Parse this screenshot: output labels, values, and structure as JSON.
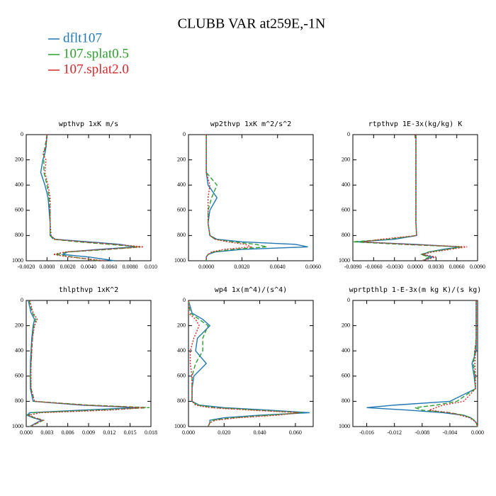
{
  "title": "CLUBB VAR at259E,-1N",
  "legend": [
    {
      "name": "dflt107",
      "color": "#1f77b4",
      "style": "solid"
    },
    {
      "name": "107.splat0.5",
      "color": "#2ca02c",
      "style": "dashed"
    },
    {
      "name": "107.splat2.0",
      "color": "#d62728",
      "style": "dotted"
    }
  ],
  "chart_data": [
    {
      "type": "line",
      "title": "wpthvp  1xK m/s",
      "y": [
        0,
        100,
        150,
        200,
        300,
        400,
        500,
        600,
        700,
        800,
        830,
        850,
        870,
        890,
        910,
        930,
        950,
        970,
        1000
      ],
      "ylim": [
        0,
        1000
      ],
      "y_inverted": true,
      "yticks": [
        0,
        200,
        400,
        600,
        800,
        1000
      ],
      "xlim": [
        -0.002,
        0.01
      ],
      "xticks": [
        {
          "value": -0.002,
          "label": "-0.0020"
        },
        {
          "value": 0,
          "label": "0.0000"
        },
        {
          "value": 0.002,
          "label": "0.0020"
        },
        {
          "value": 0.004,
          "label": "0.0040"
        },
        {
          "value": 0.006,
          "label": "0.0060"
        },
        {
          "value": 0.008,
          "label": "0.0080"
        },
        {
          "value": 0.01,
          "label": "0.010"
        }
      ],
      "series": [
        {
          "values": [
            0,
            -0.0001,
            -0.0002,
            -0.0004,
            -0.0006,
            -0.0002,
            0.0001,
            0.0002,
            0.0003,
            0.0003,
            0.0008,
            0.004,
            0.007,
            0.0085,
            0.005,
            0.002,
            0.0015,
            0.004,
            0.0065
          ]
        },
        {
          "values": [
            0,
            -0.0002,
            -0.0003,
            -0.0003,
            -0.0003,
            0,
            0.0002,
            0.0003,
            0.0003,
            0.0003,
            0.0006,
            0.003,
            0.006,
            0.009,
            0.006,
            0.002,
            0.0008,
            0.0025,
            0.005
          ]
        },
        {
          "values": [
            0,
            -0.0001,
            -0.0004,
            -0.0001,
            -0.0002,
            0.0001,
            0.0003,
            0.0003,
            0.0003,
            0.0004,
            0.0007,
            0.0035,
            0.0065,
            0.0093,
            0.0055,
            0.0018,
            0.0006,
            0.0022,
            0.0055
          ]
        }
      ]
    },
    {
      "type": "line",
      "title": "wp2thvp  1xK m^2/s^2",
      "y": [
        0,
        100,
        150,
        200,
        300,
        400,
        500,
        600,
        700,
        800,
        830,
        850,
        870,
        890,
        910,
        930,
        950,
        970,
        1000
      ],
      "ylim": [
        0,
        1000
      ],
      "y_inverted": true,
      "yticks": [
        0,
        200,
        400,
        600,
        800,
        1000
      ],
      "xlim": [
        -0.001,
        0.006
      ],
      "xticks": [
        {
          "value": 0,
          "label": "0.0000"
        },
        {
          "value": 0.002,
          "label": "0.0020"
        },
        {
          "value": 0.004,
          "label": "0.0040"
        },
        {
          "value": 0.006,
          "label": "0.0060"
        }
      ],
      "series": [
        {
          "values": [
            0,
            0,
            0,
            0,
            0,
            0.0001,
            0.0006,
            0.0002,
            0.0001,
            0.0002,
            0.0006,
            0.002,
            0.005,
            0.0057,
            0.002,
            0.0005,
            0.0001,
            0,
            0
          ]
        },
        {
          "values": [
            0,
            0,
            0,
            0,
            0,
            0.0006,
            0.0003,
            0.0001,
            0.0001,
            0.0002,
            0.0005,
            0.0015,
            0.0028,
            0.0034,
            0.0015,
            0.0004,
            0.0001,
            0,
            0
          ]
        },
        {
          "values": [
            0,
            0,
            0,
            0,
            0,
            0.0002,
            0.0001,
            0.0001,
            0.0001,
            0.0002,
            0.0005,
            0.0012,
            0.0022,
            0.0025,
            0.001,
            0.0003,
            0.0001,
            0,
            0
          ]
        }
      ]
    },
    {
      "type": "line",
      "title": "rtpthvp  1E-3x(kg/kg) K",
      "y": [
        0,
        100,
        150,
        200,
        300,
        400,
        500,
        600,
        700,
        800,
        830,
        850,
        870,
        890,
        910,
        930,
        950,
        970,
        1000
      ],
      "ylim": [
        0,
        1000
      ],
      "y_inverted": true,
      "yticks": [
        0,
        200,
        400,
        600,
        800,
        1000
      ],
      "xlim": [
        -0.009,
        0.009
      ],
      "xticks": [
        {
          "value": -0.009,
          "label": "-0.0090"
        },
        {
          "value": -0.006,
          "label": "-0.0060"
        },
        {
          "value": -0.003,
          "label": "-0.0030"
        },
        {
          "value": 0,
          "label": "0.0000"
        },
        {
          "value": 0.003,
          "label": "0.0030"
        },
        {
          "value": 0.006,
          "label": "0.0060"
        },
        {
          "value": 0.009,
          "label": "0.0090"
        }
      ],
      "series": [
        {
          "values": [
            0.0001,
            0.0001,
            0.0001,
            0.0001,
            0.0001,
            0.0001,
            0.0001,
            0.0001,
            0.0001,
            0.0002,
            -0.003,
            -0.0085,
            0,
            0.0065,
            0.004,
            0.002,
            0.001,
            0.0025,
            0.001
          ]
        },
        {
          "values": [
            0.0001,
            0.0001,
            0.0001,
            0.0001,
            0.0001,
            0.0001,
            0.0001,
            0.0001,
            0.0001,
            0.0002,
            -0.004,
            -0.009,
            -0.002,
            0.0068,
            0.0045,
            0.002,
            0.0008,
            0.002,
            0.001
          ]
        },
        {
          "values": [
            0.0001,
            0.0001,
            0.0001,
            0.0001,
            0.0001,
            0.0001,
            0.0001,
            0.0001,
            0.0001,
            0.0002,
            -0.005,
            -0.0075,
            -0.001,
            0.0075,
            0.005,
            0.0025,
            0.001,
            0.003,
            0.001
          ]
        }
      ]
    },
    {
      "type": "line",
      "title": "thlpthvp  1xK^2",
      "y": [
        0,
        100,
        150,
        200,
        300,
        400,
        500,
        600,
        700,
        800,
        830,
        850,
        870,
        890,
        910,
        930,
        950,
        970,
        1000
      ],
      "ylim": [
        0,
        1000
      ],
      "y_inverted": true,
      "yticks": [
        0,
        200,
        400,
        600,
        800,
        1000
      ],
      "xlim": [
        0,
        0.018
      ],
      "xticks": [
        {
          "value": 0,
          "label": "0.000"
        },
        {
          "value": 0.003,
          "label": "0.003"
        },
        {
          "value": 0.006,
          "label": "0.006"
        },
        {
          "value": 0.009,
          "label": "0.009"
        },
        {
          "value": 0.012,
          "label": "0.012"
        },
        {
          "value": 0.015,
          "label": "0.015"
        },
        {
          "value": 0.018,
          "label": "0.018"
        }
      ],
      "series": [
        {
          "values": [
            0.0003,
            0.0007,
            0.0012,
            0.001,
            0.0008,
            0.0007,
            0.0006,
            0.0006,
            0.0006,
            0.001,
            0.008,
            0.016,
            0.008,
            0.0005,
            0.0001,
            0.001,
            0.0022,
            0.0015,
            0.0005
          ]
        },
        {
          "values": [
            0.0004,
            0.0009,
            0.0014,
            0.0011,
            0.0009,
            0.0008,
            0.0007,
            0.0006,
            0.0007,
            0.0012,
            0.009,
            0.0178,
            0.01,
            0.001,
            0.0002,
            0.0012,
            0.0025,
            0.0017,
            0.0006
          ]
        },
        {
          "values": [
            0.0005,
            0.001,
            0.0016,
            0.0012,
            0.0009,
            0.0008,
            0.0007,
            0.0007,
            0.0007,
            0.0012,
            0.0085,
            0.017,
            0.012,
            0.002,
            0.0004,
            0.0013,
            0.0024,
            0.0016,
            0.0006
          ]
        }
      ]
    },
    {
      "type": "line",
      "title": "wp4  1x(m^4)/(s^4)",
      "y": [
        0,
        100,
        150,
        200,
        300,
        400,
        500,
        600,
        700,
        800,
        830,
        850,
        870,
        890,
        910,
        930,
        950,
        970,
        1000
      ],
      "ylim": [
        0,
        1000
      ],
      "y_inverted": true,
      "yticks": [
        0,
        200,
        400,
        600,
        800,
        1000
      ],
      "xlim": [
        0,
        0.07
      ],
      "xticks": [
        {
          "value": 0,
          "label": "0.000"
        },
        {
          "value": 0.02,
          "label": "0.020"
        },
        {
          "value": 0.04,
          "label": "0.040"
        },
        {
          "value": 0.06,
          "label": "0.060"
        }
      ],
      "series": [
        {
          "values": [
            0,
            0.002,
            0.008,
            0.012,
            0.005,
            0.004,
            0.01,
            0.003,
            0.002,
            0.002,
            0.006,
            0.02,
            0.045,
            0.068,
            0.04,
            0.02,
            0.012,
            0.012,
            0.011
          ]
        },
        {
          "values": [
            0,
            0.001,
            0.006,
            0.011,
            0.008,
            0.008,
            0.004,
            0.002,
            0.002,
            0.002,
            0.005,
            0.015,
            0.04,
            0.064,
            0.045,
            0.025,
            0.013,
            0.012,
            0.011
          ]
        },
        {
          "values": [
            0,
            0,
            0.004,
            0.006,
            0.003,
            0.001,
            0.001,
            0.002,
            0.002,
            0.002,
            0.004,
            0.012,
            0.035,
            0.062,
            0.05,
            0.028,
            0.015,
            0.012,
            0.011
          ]
        }
      ]
    },
    {
      "type": "line",
      "title": "wprtpthlp  1-E-3x(m kg K)/(s kg)",
      "y": [
        0,
        100,
        150,
        200,
        300,
        400,
        500,
        600,
        700,
        800,
        830,
        850,
        870,
        890,
        910,
        930,
        950,
        970,
        1000
      ],
      "ylim": [
        0,
        1000
      ],
      "y_inverted": true,
      "yticks": [
        0,
        200,
        400,
        600,
        800,
        1000
      ],
      "xlim": [
        -0.018,
        0
      ],
      "xticks": [
        {
          "value": -0.016,
          "label": "-0.016"
        },
        {
          "value": -0.012,
          "label": "-0.012"
        },
        {
          "value": -0.008,
          "label": "-0.008"
        },
        {
          "value": -0.004,
          "label": "-0.004"
        },
        {
          "value": 0,
          "label": "0.000"
        }
      ],
      "series": [
        {
          "values": [
            -0.0002,
            -0.0002,
            -0.0002,
            -0.0002,
            -0.0002,
            -0.0002,
            -0.0008,
            -0.0005,
            -0.0003,
            -0.004,
            -0.012,
            -0.016,
            -0.01,
            -0.005,
            -0.002,
            -0.001,
            -0.0005,
            -0.0002,
            0
          ]
        },
        {
          "values": [
            -0.0002,
            -0.0002,
            -0.0002,
            -0.0002,
            -0.0002,
            -0.0004,
            -0.0006,
            -0.0004,
            -0.0003,
            -0.003,
            -0.006,
            -0.009,
            -0.008,
            -0.004,
            -0.002,
            -0.001,
            -0.0005,
            -0.0002,
            0
          ]
        },
        {
          "values": [
            -0.0002,
            -0.0002,
            -0.0002,
            -0.0002,
            -0.0002,
            -0.0003,
            -0.0004,
            -0.0003,
            -0.0003,
            -0.002,
            -0.005,
            -0.006,
            -0.007,
            -0.004,
            -0.0025,
            -0.0012,
            -0.0006,
            -0.0002,
            0
          ]
        }
      ]
    }
  ]
}
